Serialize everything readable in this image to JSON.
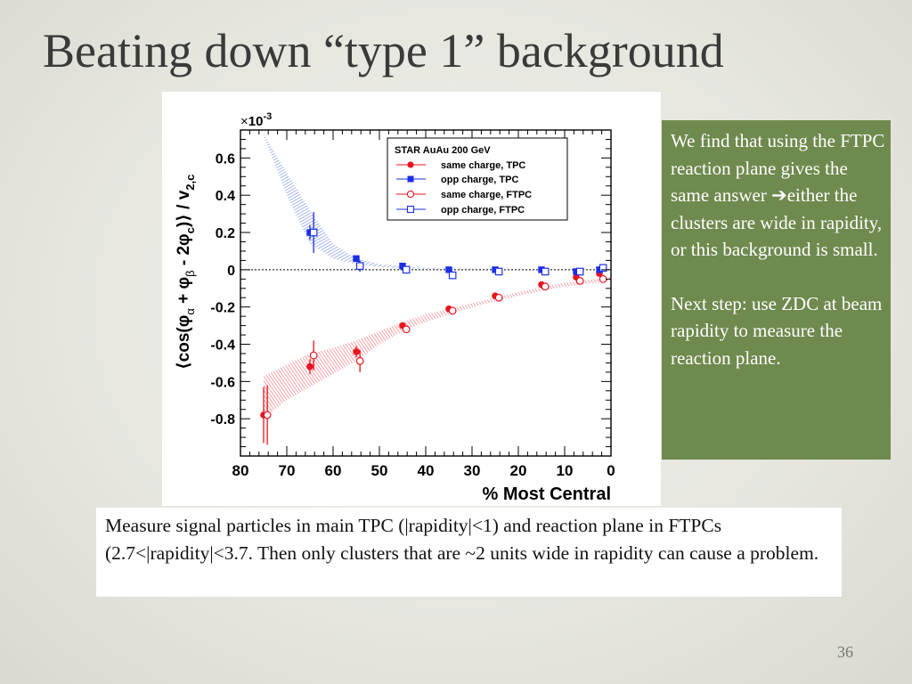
{
  "slide": {
    "title": "Beating down “type 1” background",
    "page_number": "36"
  },
  "note": {
    "paragraph1": "We find that using the FTPC reaction plane gives the same answer ➔either the clusters are wide in rapidity, or this background is small.",
    "paragraph2": "Next step:  use ZDC at beam rapidity to measure the reaction plane."
  },
  "caption": {
    "text": "Measure signal particles in main TPC (|rapidity|<1) and reaction plane in FTPCs (2.7<|rapidity|<3.7.   Then only clusters that are ~2 units wide in rapidity can cause a problem."
  },
  "chart_data": {
    "type": "scatter",
    "xlabel": "% Most Central",
    "ylabel_parts": {
      "open": "⟨cos(φ",
      "sub_alpha": "α",
      "plus": " + φ",
      "sub_beta": "β",
      "minus": " - 2φ",
      "sub_c": "c",
      "close": ")⟩ / v",
      "sub_2c": "2,c"
    },
    "y_multiplier": {
      "times": "×",
      "base": "10",
      "exp": "-3"
    },
    "x_reversed": true,
    "xlim": [
      0,
      80
    ],
    "ylim": [
      -1.0,
      0.75
    ],
    "x_ticks": [
      80,
      70,
      60,
      50,
      40,
      30,
      20,
      10,
      0
    ],
    "x_tick_labels": [
      "80",
      "70",
      "60",
      "50",
      "40",
      "30",
      "20",
      "10",
      "0"
    ],
    "y_ticks": [
      0.6,
      0.4,
      0.2,
      0,
      -0.2,
      -0.4,
      -0.6,
      -0.8
    ],
    "y_tick_labels": [
      "0.6",
      "0.4",
      "0.2",
      "0",
      "-0.2",
      "-0.4",
      "-0.6",
      "-0.8"
    ],
    "zero_line": true,
    "legend": {
      "title": "STAR  AuAu 200 GeV",
      "placement": "top-right"
    },
    "series": [
      {
        "name": "same charge, TPC",
        "marker": "filled-circle",
        "color": "#e8141e",
        "x": [
          75,
          65,
          55,
          45,
          35,
          25,
          15,
          7.5,
          2.5
        ],
        "y": [
          -0.78,
          -0.52,
          -0.44,
          -0.3,
          -0.21,
          -0.14,
          -0.08,
          -0.04,
          -0.02
        ],
        "err": [
          0.15,
          0.04,
          0.03,
          0.015,
          0.01,
          0.008,
          0.006,
          0.005,
          0.004
        ]
      },
      {
        "name": "opp charge, TPC",
        "marker": "filled-square",
        "color": "#1a2ee8",
        "x": [
          65,
          55,
          45,
          35,
          25,
          15,
          7.5,
          2.5
        ],
        "y": [
          0.2,
          0.06,
          0.02,
          0.0,
          0.0,
          0.0,
          -0.01,
          0.0
        ],
        "err": [
          0.04,
          0.01,
          0.008,
          0.006,
          0.005,
          0.005,
          0.004,
          0.004
        ]
      },
      {
        "name": "same charge, FTPC",
        "marker": "open-circle",
        "color": "#e8141e",
        "x": [
          74.2,
          64.2,
          54.2,
          44.2,
          34.2,
          24.2,
          14.2,
          6.7,
          1.7
        ],
        "y": [
          -0.78,
          -0.46,
          -0.49,
          -0.32,
          -0.22,
          -0.15,
          -0.09,
          -0.06,
          -0.05
        ],
        "err": [
          0.16,
          0.08,
          0.06,
          0.02,
          0.012,
          0.01,
          0.008,
          0.006,
          0.005
        ]
      },
      {
        "name": "opp charge, FTPC",
        "marker": "open-square",
        "color": "#1a2ee8",
        "x": [
          64.2,
          54.2,
          44.2,
          34.2,
          24.2,
          14.2,
          6.7,
          1.7
        ],
        "y": [
          0.2,
          0.02,
          0.0,
          -0.03,
          -0.01,
          -0.01,
          -0.01,
          0.01
        ],
        "err": [
          0.11,
          0.03,
          0.01,
          0.01,
          0.008,
          0.006,
          0.005,
          0.005
        ]
      }
    ],
    "bands": [
      {
        "color": "#2a55d6",
        "x": [
          75,
          70,
          65,
          60,
          55,
          50,
          45,
          40,
          30,
          20,
          10,
          0
        ],
        "upper": [
          0.73,
          0.52,
          0.32,
          0.14,
          0.06,
          0.03,
          0.02,
          0.01,
          0.005,
          0.003,
          0.002,
          0.002
        ],
        "lower": [
          0.72,
          0.4,
          0.14,
          0.06,
          0.03,
          0.015,
          0.008,
          0.005,
          0.003,
          0.002,
          0.001,
          0.001
        ]
      },
      {
        "color": "#f0222c",
        "x": [
          75,
          70,
          65,
          60,
          55,
          50,
          45,
          40,
          30,
          20,
          10,
          0
        ],
        "upper": [
          -0.57,
          -0.51,
          -0.45,
          -0.42,
          -0.38,
          -0.33,
          -0.28,
          -0.24,
          -0.18,
          -0.12,
          -0.07,
          -0.04
        ],
        "lower": [
          -0.8,
          -0.7,
          -0.63,
          -0.56,
          -0.49,
          -0.4,
          -0.33,
          -0.28,
          -0.2,
          -0.14,
          -0.09,
          -0.06
        ]
      }
    ]
  }
}
